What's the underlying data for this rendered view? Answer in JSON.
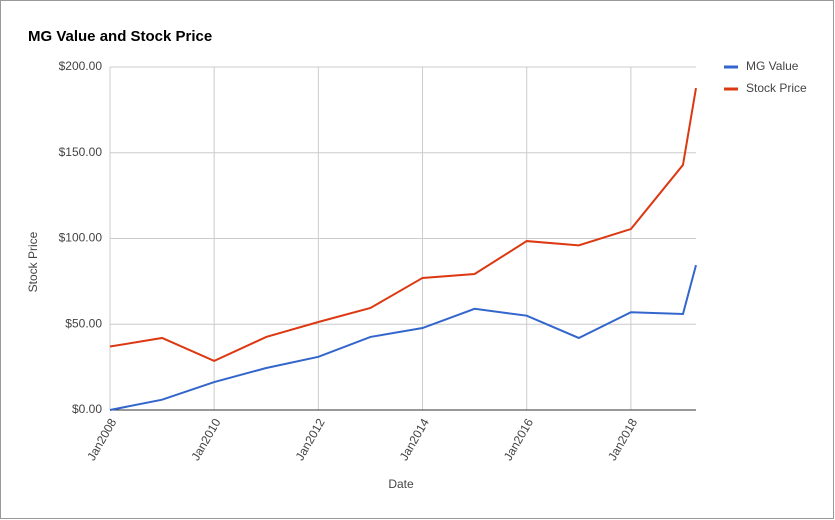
{
  "chart_data": {
    "type": "line",
    "title": "MG Value and Stock Price",
    "x_label": "Date",
    "y_label": "Stock Price",
    "x": [
      2008,
      2009,
      2010,
      2011,
      2012,
      2013,
      2014,
      2015,
      2016,
      2017,
      2018,
      2019,
      2019.25
    ],
    "series": [
      {
        "name": "MG Value",
        "color": "#3366cc",
        "values": [
          0,
          6,
          16.3,
          24.5,
          31,
          42.6,
          47.8,
          59,
          55,
          42,
          57,
          56,
          84.5
        ]
      },
      {
        "name": "Stock Price",
        "color": "#dc3912",
        "values": [
          37,
          42,
          28.6,
          42.6,
          51.3,
          59.5,
          77,
          79.3,
          98.5,
          96,
          105.5,
          142.9,
          187.7
        ]
      }
    ],
    "xlim": [
      2008,
      2019.25
    ],
    "xticks": [
      {
        "value": 2008,
        "label": "Jan2008"
      },
      {
        "value": 2010,
        "label": "Jan2010"
      },
      {
        "value": 2012,
        "label": "Jan2012"
      },
      {
        "value": 2014,
        "label": "Jan2014"
      },
      {
        "value": 2016,
        "label": "Jan2016"
      },
      {
        "value": 2018,
        "label": "Jan2018"
      }
    ],
    "ylim": [
      0,
      200
    ],
    "yticks": [
      {
        "value": 0,
        "label": "$0.00"
      },
      {
        "value": 50,
        "label": "$50.00"
      },
      {
        "value": 100,
        "label": "$100.00"
      },
      {
        "value": 150,
        "label": "$150.00"
      },
      {
        "value": 200,
        "label": "$200.00"
      }
    ],
    "grid": true,
    "legend": "right"
  }
}
